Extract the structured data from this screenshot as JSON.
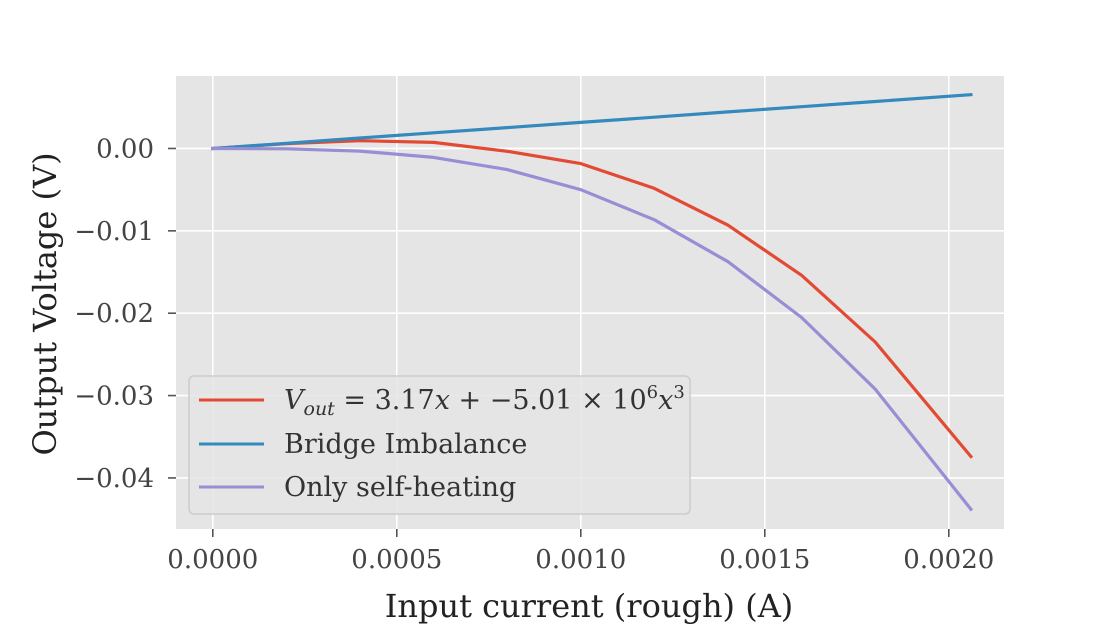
{
  "chart_data": {
    "type": "line",
    "title": "",
    "xlabel": "Input current (rough) (A)",
    "ylabel": "Output Voltage (V)",
    "xlim": [
      -0.0001,
      0.00215
    ],
    "ylim": [
      -0.0462,
      0.0088
    ],
    "xticks": [
      0.0,
      0.0005,
      0.001,
      0.0015,
      0.002
    ],
    "xtick_labels": [
      "0.0000",
      "0.0005",
      "0.0010",
      "0.0015",
      "0.0020"
    ],
    "yticks": [
      0.0,
      -0.01,
      -0.02,
      -0.03,
      -0.04
    ],
    "ytick_labels": [
      "0.00",
      "−0.01",
      "−0.02",
      "−0.03",
      "−0.04"
    ],
    "grid": true,
    "legend_position": "lower-left",
    "x": [
      0.0,
      0.0002,
      0.0004,
      0.0006,
      0.0008,
      0.001,
      0.0012,
      0.0014,
      0.0016,
      0.0018,
      0.00206
    ],
    "series": [
      {
        "name": "V_out = 3.17x + −5.01 × 10^6 x^3",
        "color": "#E24A33",
        "values": [
          0.0,
          0.000594,
          0.000947,
          0.000738,
          -0.000345,
          -0.00184,
          -0.00485,
          -0.00931,
          -0.0154,
          -0.0235,
          -0.0374
        ]
      },
      {
        "name": "Bridge Imbalance",
        "color": "#348ABD",
        "values": [
          0.0,
          0.000634,
          0.00127,
          0.0019,
          0.00254,
          0.00317,
          0.0038,
          0.00444,
          0.00507,
          0.00571,
          0.00653
        ]
      },
      {
        "name": "Only self-heating",
        "color": "#988ED5",
        "values": [
          0.0,
          -4e-05,
          -0.00032,
          -0.00108,
          -0.00257,
          -0.00501,
          -0.00866,
          -0.01375,
          -0.02052,
          -0.02922,
          -0.0438
        ]
      }
    ]
  },
  "legend": {
    "entries": [
      {
        "label": "V_out = 3.17x + −5.01 × 10^6 x^3",
        "color": "#E24A33"
      },
      {
        "label": "Bridge Imbalance",
        "color": "#348ABD"
      },
      {
        "label": "Only self-heating",
        "color": "#988ED5"
      }
    ]
  },
  "colors": {
    "plot_background": "#E5E5E5",
    "grid": "#FFFFFF"
  }
}
